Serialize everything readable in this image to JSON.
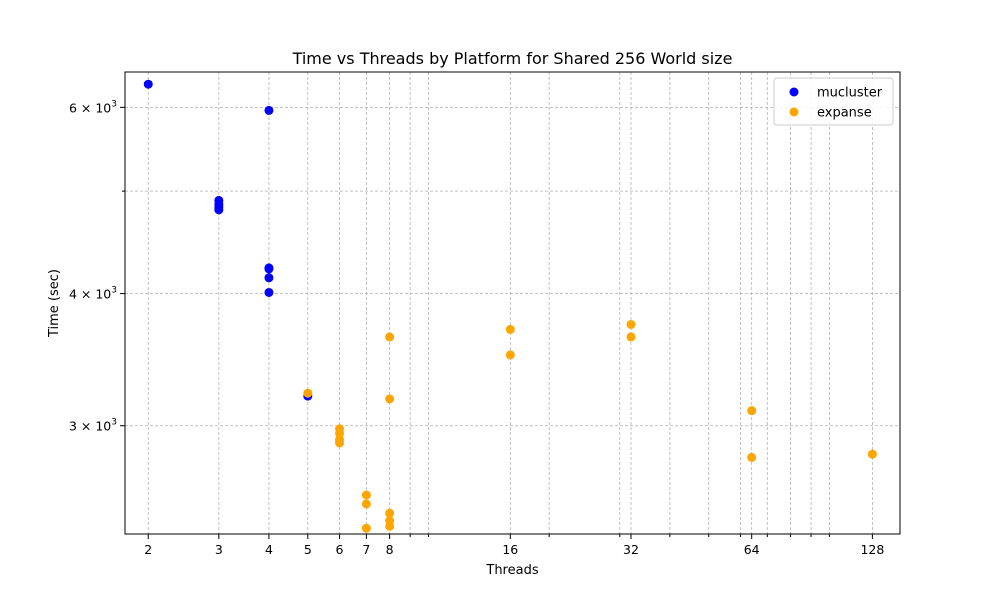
{
  "chart_data": {
    "type": "scatter",
    "title": "Time vs Threads by Platform for Shared 256 World size",
    "xlabel": "Threads",
    "ylabel": "Time (sec)",
    "xscale": "log",
    "yscale": "log",
    "xlim": [
      1.75,
      150
    ],
    "ylim": [
      2370,
      6480
    ],
    "x_ticks": [
      2,
      3,
      4,
      5,
      6,
      7,
      8,
      16,
      32,
      64,
      128
    ],
    "x_tick_labels": [
      "2",
      "3",
      "4",
      "5",
      "6",
      "7",
      "8",
      "16",
      "32",
      "64",
      "128"
    ],
    "x_minor_ticks": [
      9,
      10,
      20,
      30,
      40,
      50,
      60,
      70,
      80,
      90,
      100
    ],
    "y_ticks": [
      3000,
      4000,
      6000
    ],
    "y_minor_ticks": [
      5000
    ],
    "y_tick_labels": [
      {
        "mantissa": "3",
        "base": "10",
        "exp": "3"
      },
      {
        "mantissa": "4",
        "base": "10",
        "exp": "3"
      },
      {
        "mantissa": "6",
        "base": "10",
        "exp": "3"
      }
    ],
    "grid": true,
    "legend_position": "top-right",
    "series": [
      {
        "name": "mucluster",
        "color": "#0000ff",
        "x": [
          2,
          3,
          3,
          3,
          3,
          4,
          4,
          4,
          4,
          4,
          5
        ],
        "y": [
          6310,
          4900,
          4860,
          4830,
          4800,
          5960,
          4230,
          4220,
          4140,
          4010,
          3200
        ]
      },
      {
        "name": "expanse",
        "color": "#ffa500",
        "x": [
          5,
          6,
          6,
          6,
          6,
          7,
          7,
          7,
          8,
          8,
          8,
          8,
          8,
          16,
          16,
          32,
          32,
          64,
          64,
          128
        ],
        "y": [
          3220,
          2980,
          2950,
          2910,
          2890,
          2580,
          2530,
          2400,
          3640,
          3180,
          2480,
          2440,
          2410,
          3700,
          3500,
          3740,
          3640,
          3100,
          2800,
          2820
        ]
      }
    ]
  }
}
